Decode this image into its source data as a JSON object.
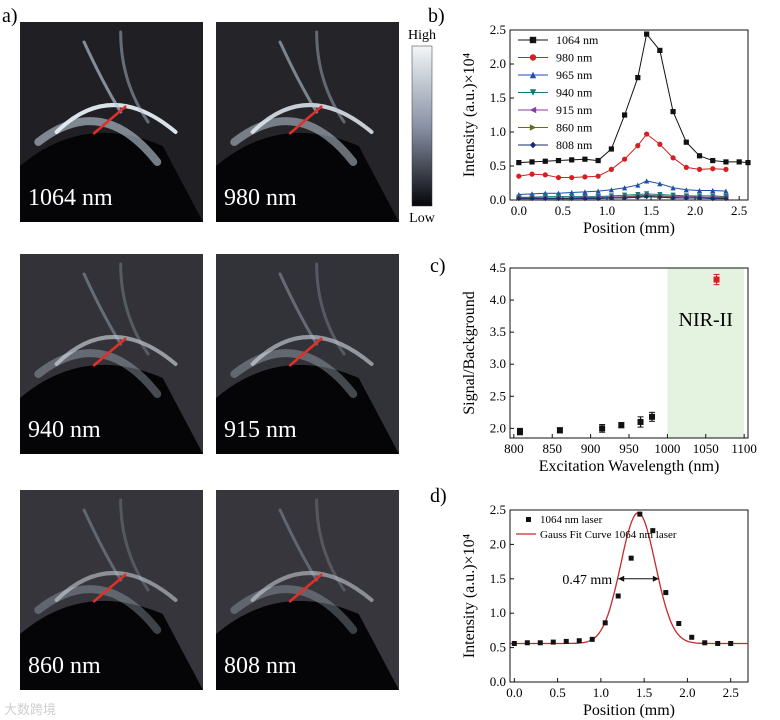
{
  "panel_letters": {
    "a": "a)",
    "b": "b)",
    "c": "c)",
    "d": "d)"
  },
  "images": [
    {
      "label": "1064 nm",
      "brightness": 1.0
    },
    {
      "label": "980 nm",
      "brightness": 0.85
    },
    {
      "label": "940 nm",
      "brightness": 0.45
    },
    {
      "label": "915 nm",
      "brightness": 0.42
    },
    {
      "label": "860 nm",
      "brightness": 0.35
    },
    {
      "label": "808 nm",
      "brightness": 0.33
    }
  ],
  "colorbar": {
    "high": "High",
    "low": "Low"
  },
  "watermark": "大数跨境",
  "chart_data": [
    {
      "id": "b",
      "type": "line",
      "xlabel": "Position (mm)",
      "ylabel": "Intensity (a.u.)×10⁴",
      "xlim": [
        -0.1,
        2.6
      ],
      "ylim": [
        0,
        2.5
      ],
      "xticks": [
        "0.0",
        "0.5",
        "1.0",
        "1.5",
        "2.0",
        "2.5"
      ],
      "yticks": [
        "0.0",
        "0.5",
        "1.0",
        "1.5",
        "2.0",
        "2.5"
      ],
      "x": [
        0,
        0.15,
        0.3,
        0.45,
        0.6,
        0.75,
        0.9,
        1.05,
        1.2,
        1.35,
        1.45,
        1.6,
        1.75,
        1.9,
        2.05,
        2.2,
        2.35,
        2.5,
        2.6
      ],
      "series": [
        {
          "name": "1064 nm",
          "color": "#111111",
          "marker": "square",
          "values": [
            0.55,
            0.56,
            0.57,
            0.58,
            0.59,
            0.6,
            0.58,
            0.75,
            1.25,
            1.8,
            2.44,
            2.2,
            1.3,
            0.85,
            0.65,
            0.58,
            0.56,
            0.56,
            0.55
          ]
        },
        {
          "name": "980 nm",
          "color": "#d42020",
          "marker": "circle",
          "values": [
            0.35,
            0.38,
            0.37,
            0.33,
            0.33,
            0.34,
            0.35,
            0.45,
            0.6,
            0.8,
            0.97,
            0.82,
            0.62,
            0.48,
            0.45,
            0.46,
            0.45,
            null,
            null
          ]
        },
        {
          "name": "965 nm",
          "color": "#1f4fa8",
          "marker": "triangle-up",
          "values": [
            0.08,
            0.09,
            0.1,
            0.1,
            0.11,
            0.12,
            0.13,
            0.15,
            0.18,
            0.22,
            0.28,
            0.24,
            0.18,
            0.15,
            0.14,
            0.14,
            0.13,
            null,
            null
          ]
        },
        {
          "name": "940 nm",
          "color": "#127a7a",
          "marker": "triangle-down",
          "values": [
            0.04,
            0.04,
            0.05,
            0.05,
            0.05,
            0.05,
            0.05,
            0.06,
            0.07,
            0.08,
            0.09,
            0.08,
            0.07,
            0.06,
            0.06,
            0.06,
            0.05,
            null,
            null
          ]
        },
        {
          "name": "915 nm",
          "color": "#8a3aa0",
          "marker": "triangle-left",
          "values": [
            0.03,
            0.03,
            0.03,
            0.03,
            0.03,
            0.04,
            0.04,
            0.04,
            0.05,
            0.06,
            0.07,
            0.06,
            0.05,
            0.05,
            0.04,
            0.04,
            0.04,
            null,
            null
          ]
        },
        {
          "name": "860 nm",
          "color": "#6b6b12",
          "marker": "triangle-right",
          "values": [
            0.02,
            0.02,
            0.02,
            0.02,
            0.02,
            0.03,
            0.03,
            0.03,
            0.04,
            0.05,
            0.06,
            0.05,
            0.04,
            0.03,
            0.03,
            0.03,
            0.03,
            null,
            null
          ]
        },
        {
          "name": "808 nm",
          "color": "#1b2a6e",
          "marker": "diamond",
          "values": [
            0.02,
            0.02,
            0.02,
            0.02,
            0.02,
            0.02,
            0.02,
            0.03,
            0.03,
            0.04,
            0.05,
            0.04,
            0.03,
            0.03,
            0.03,
            0.02,
            0.02,
            null,
            null
          ]
        }
      ]
    },
    {
      "id": "c",
      "type": "scatter",
      "xlabel": "Excitation Wavelength (nm)",
      "ylabel": "Signal/Background",
      "xlim": [
        795,
        1105
      ],
      "ylim": [
        1.85,
        4.5
      ],
      "xticks": [
        800,
        850,
        900,
        950,
        1000,
        1050,
        1100
      ],
      "yticks": [
        "2.0",
        "2.5",
        "3.0",
        "3.5",
        "4.0",
        "4.5"
      ],
      "region": {
        "label": "NIR-II",
        "from": 1000,
        "to": 1100,
        "color": "#e4f3df"
      },
      "points": [
        {
          "x": 808,
          "y": 1.95,
          "err": 0.05,
          "color": "#111111"
        },
        {
          "x": 860,
          "y": 1.97,
          "err": 0.04,
          "color": "#111111"
        },
        {
          "x": 915,
          "y": 2.0,
          "err": 0.06,
          "color": "#111111"
        },
        {
          "x": 940,
          "y": 2.05,
          "err": 0.04,
          "color": "#111111"
        },
        {
          "x": 965,
          "y": 2.1,
          "err": 0.08,
          "color": "#111111"
        },
        {
          "x": 980,
          "y": 2.18,
          "err": 0.07,
          "color": "#111111"
        },
        {
          "x": 1064,
          "y": 4.32,
          "err": 0.08,
          "color": "#d42020"
        }
      ]
    },
    {
      "id": "d",
      "type": "scatter+line",
      "xlabel": "Position (mm)",
      "ylabel": "Intensity (a.u.)×10⁴",
      "xlim": [
        -0.05,
        2.7
      ],
      "ylim": [
        0,
        2.5
      ],
      "xticks": [
        "0.0",
        "0.5",
        "1.0",
        "1.5",
        "2.0",
        "2.5"
      ],
      "yticks": [
        "0.0",
        "0.5",
        "1.0",
        "1.5",
        "2.0",
        "2.5"
      ],
      "legend": [
        "1064 nm laser",
        "Gauss  Fit Curve 1064 nm laser"
      ],
      "annotation": "0.47 mm",
      "fwhm_from": 1.2,
      "fwhm_to": 1.67,
      "fwhm_y": 1.5,
      "points": {
        "x": [
          0.0,
          0.15,
          0.3,
          0.45,
          0.6,
          0.75,
          0.9,
          1.05,
          1.2,
          1.35,
          1.45,
          1.6,
          1.75,
          1.9,
          2.05,
          2.2,
          2.35,
          2.5
        ],
        "y": [
          0.56,
          0.57,
          0.57,
          0.58,
          0.59,
          0.6,
          0.62,
          0.86,
          1.25,
          1.8,
          2.44,
          2.2,
          1.3,
          0.85,
          0.65,
          0.57,
          0.56,
          0.56
        ]
      },
      "fit": {
        "baseline": 0.56,
        "amplitude": 1.9,
        "center": 1.43,
        "sigma": 0.2,
        "color": "#c42a2a"
      }
    }
  ]
}
